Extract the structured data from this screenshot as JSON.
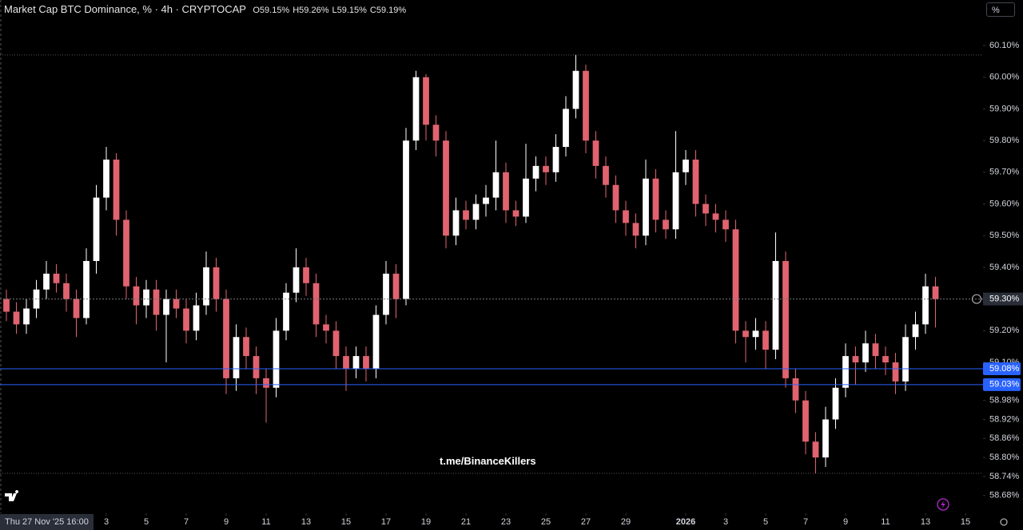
{
  "chart_data": {
    "type": "candlestick",
    "title": "Market Cap BTC Dominance, % · 4h · CRYPTOCAP",
    "ohlc_legend": [
      {
        "key": "O",
        "text": "59.15%"
      },
      {
        "key": "H",
        "text": "59.26%"
      },
      {
        "key": "L",
        "text": "59.15%"
      },
      {
        "key": "C",
        "text": "59.19%"
      }
    ],
    "watermark": "t.me/BinanceKillers",
    "unit_button": "%",
    "crosshair_label": "Thu 27 Nov '25 16:00",
    "up_color": "#ffffff",
    "down_color": "#e0636f",
    "grid": false,
    "xlim": [
      -3.32,
      45.88
    ],
    "ylim": [
      58.624,
      60.2436
    ],
    "xticks": [
      {
        "value": 2,
        "label": "3"
      },
      {
        "value": 4,
        "label": "5"
      },
      {
        "value": 6,
        "label": "7"
      },
      {
        "value": 8,
        "label": "9"
      },
      {
        "value": 10,
        "label": "11"
      },
      {
        "value": 12,
        "label": "13"
      },
      {
        "value": 14,
        "label": "15"
      },
      {
        "value": 16,
        "label": "17"
      },
      {
        "value": 18,
        "label": "19"
      },
      {
        "value": 20,
        "label": "21"
      },
      {
        "value": 22,
        "label": "23"
      },
      {
        "value": 24,
        "label": "25"
      },
      {
        "value": 26,
        "label": "27"
      },
      {
        "value": 28,
        "label": "29"
      },
      {
        "value": 31,
        "label": "2026"
      },
      {
        "value": 33,
        "label": "3"
      },
      {
        "value": 35,
        "label": "5"
      },
      {
        "value": 37,
        "label": "7"
      },
      {
        "value": 39,
        "label": "9"
      },
      {
        "value": 41,
        "label": "11"
      },
      {
        "value": 43,
        "label": "13"
      },
      {
        "value": 45,
        "label": "15"
      }
    ],
    "yticks": [
      {
        "value": 60.1,
        "label": "60.10%"
      },
      {
        "value": 60.0,
        "label": "60.00%"
      },
      {
        "value": 59.9,
        "label": "59.90%"
      },
      {
        "value": 59.8,
        "label": "59.80%"
      },
      {
        "value": 59.7,
        "label": "59.70%"
      },
      {
        "value": 59.6,
        "label": "59.60%"
      },
      {
        "value": 59.5,
        "label": "59.50%"
      },
      {
        "value": 59.4,
        "label": "59.40%"
      },
      {
        "value": 59.2,
        "label": "59.20%"
      },
      {
        "value": 59.1,
        "label": "59.10%"
      },
      {
        "value": 58.98,
        "label": "58.98%"
      },
      {
        "value": 58.92,
        "label": "58.92%"
      },
      {
        "value": 58.86,
        "label": "58.86%"
      },
      {
        "value": 58.8,
        "label": "58.80%"
      },
      {
        "value": 58.74,
        "label": "58.74%"
      },
      {
        "value": 58.68,
        "label": "58.68%"
      }
    ],
    "last_price": {
      "value": 59.3,
      "label": "59.30%"
    },
    "levels": [
      {
        "value": 59.08,
        "label": "59.08%",
        "color": "#2962ff"
      },
      {
        "value": 59.03,
        "label": "59.03%",
        "color": "#2962ff"
      }
    ],
    "dotted_levels": [
      60.07,
      58.75
    ],
    "x": [
      -3,
      -2.5,
      -2,
      -1.5,
      -1,
      -0.5,
      0,
      0.5,
      1,
      1.5,
      2,
      2.5,
      3,
      3.5,
      4,
      4.5,
      5,
      5.5,
      6,
      6.5,
      7,
      7.5,
      8,
      8.5,
      9,
      9.5,
      10,
      10.5,
      11,
      11.5,
      12,
      12.5,
      13,
      13.5,
      14,
      14.5,
      15,
      15.5,
      16,
      16.5,
      17,
      17.5,
      18,
      18.5,
      19,
      19.5,
      20,
      20.5,
      21,
      21.5,
      22,
      22.5,
      23,
      23.5,
      24,
      24.5,
      25,
      25.5,
      26,
      26.5,
      27,
      27.5,
      28,
      28.5,
      29,
      29.5,
      30,
      30.5,
      31,
      31.5,
      32,
      32.5,
      33,
      33.5,
      34,
      34.5,
      35,
      35.5,
      36,
      36.5,
      37,
      37.5,
      38,
      38.5,
      39,
      39.5,
      40,
      40.5,
      41,
      41.5,
      42,
      42.5,
      43,
      43.5
    ],
    "open": [
      59.3,
      59.26,
      59.22,
      59.27,
      59.33,
      59.38,
      59.35,
      59.3,
      59.24,
      59.42,
      59.62,
      59.74,
      59.55,
      59.34,
      59.28,
      59.33,
      59.25,
      59.3,
      59.27,
      59.2,
      59.28,
      59.4,
      59.3,
      59.05,
      59.18,
      59.12,
      59.05,
      59.02,
      59.2,
      59.32,
      59.4,
      59.35,
      59.22,
      59.2,
      59.12,
      59.08,
      59.12,
      59.08,
      59.25,
      59.38,
      59.3,
      59.8,
      60.0,
      59.85,
      59.8,
      59.5,
      59.58,
      59.55,
      59.6,
      59.62,
      59.7,
      59.58,
      59.56,
      59.68,
      59.72,
      59.7,
      59.78,
      59.9,
      60.02,
      59.8,
      59.72,
      59.66,
      59.58,
      59.54,
      59.5,
      59.68,
      59.55,
      59.52,
      59.7,
      59.74,
      59.6,
      59.57,
      59.55,
      59.52,
      59.2,
      59.18,
      59.2,
      59.14,
      59.42,
      59.05,
      58.98,
      58.85,
      58.8,
      58.92,
      59.02,
      59.12,
      59.1,
      59.16,
      59.12,
      59.1,
      59.04,
      59.18,
      59.22,
      59.34
    ],
    "high": [
      59.33,
      59.29,
      59.3,
      59.36,
      59.42,
      59.41,
      59.38,
      59.33,
      59.46,
      59.66,
      59.78,
      59.76,
      59.58,
      59.37,
      59.36,
      59.36,
      59.33,
      59.33,
      59.3,
      59.32,
      59.45,
      59.43,
      59.33,
      59.22,
      59.21,
      59.15,
      59.08,
      59.24,
      59.35,
      59.46,
      59.43,
      59.38,
      59.25,
      59.23,
      59.15,
      59.15,
      59.15,
      59.28,
      59.42,
      59.41,
      59.84,
      60.02,
      60.01,
      59.88,
      59.83,
      59.62,
      59.61,
      59.63,
      59.66,
      59.8,
      59.73,
      59.61,
      59.79,
      59.75,
      59.75,
      59.82,
      59.94,
      60.07,
      60.04,
      59.83,
      59.75,
      59.69,
      59.61,
      59.57,
      59.74,
      59.71,
      59.58,
      59.83,
      59.77,
      59.77,
      59.63,
      59.6,
      59.58,
      59.55,
      59.23,
      59.24,
      59.23,
      59.51,
      59.45,
      59.08,
      59.01,
      58.88,
      58.96,
      59.05,
      59.16,
      59.15,
      59.2,
      59.19,
      59.15,
      59.13,
      59.22,
      59.26,
      59.38,
      59.37
    ],
    "low": [
      59.23,
      59.19,
      59.19,
      59.24,
      59.3,
      59.32,
      59.26,
      59.18,
      59.22,
      59.38,
      59.58,
      59.5,
      59.3,
      59.22,
      59.24,
      59.2,
      59.1,
      59.24,
      59.16,
      59.17,
      59.25,
      59.26,
      59.0,
      59.01,
      59.08,
      59.0,
      58.91,
      58.99,
      59.17,
      59.29,
      59.31,
      59.18,
      59.16,
      59.08,
      59.01,
      59.05,
      59.04,
      59.05,
      59.22,
      59.24,
      59.28,
      59.77,
      59.8,
      59.75,
      59.46,
      59.47,
      59.52,
      59.52,
      59.56,
      59.58,
      59.54,
      59.53,
      59.54,
      59.64,
      59.66,
      59.67,
      59.75,
      59.87,
      59.76,
      59.68,
      59.62,
      59.54,
      59.5,
      59.46,
      59.47,
      59.51,
      59.49,
      59.49,
      59.66,
      59.56,
      59.53,
      59.51,
      59.48,
      59.16,
      59.1,
      59.14,
      59.08,
      59.11,
      59.02,
      58.94,
      58.81,
      58.75,
      58.77,
      58.89,
      58.99,
      59.03,
      59.07,
      59.08,
      59.06,
      59.0,
      59.01,
      59.14,
      59.19,
      59.21
    ],
    "close": [
      59.26,
      59.22,
      59.27,
      59.33,
      59.38,
      59.35,
      59.3,
      59.24,
      59.42,
      59.62,
      59.74,
      59.55,
      59.34,
      59.28,
      59.33,
      59.25,
      59.3,
      59.27,
      59.2,
      59.28,
      59.4,
      59.3,
      59.05,
      59.18,
      59.12,
      59.05,
      59.02,
      59.2,
      59.32,
      59.4,
      59.35,
      59.22,
      59.2,
      59.12,
      59.08,
      59.12,
      59.08,
      59.25,
      59.38,
      59.3,
      59.8,
      60.0,
      59.85,
      59.8,
      59.5,
      59.58,
      59.55,
      59.6,
      59.62,
      59.7,
      59.58,
      59.56,
      59.68,
      59.72,
      59.7,
      59.78,
      59.9,
      60.02,
      59.8,
      59.72,
      59.66,
      59.58,
      59.54,
      59.5,
      59.68,
      59.55,
      59.52,
      59.7,
      59.74,
      59.6,
      59.57,
      59.55,
      59.52,
      59.2,
      59.18,
      59.2,
      59.14,
      59.42,
      59.05,
      58.98,
      58.85,
      58.8,
      58.92,
      59.02,
      59.12,
      59.1,
      59.16,
      59.12,
      59.1,
      59.04,
      59.18,
      59.22,
      59.34,
      59.3
    ]
  }
}
